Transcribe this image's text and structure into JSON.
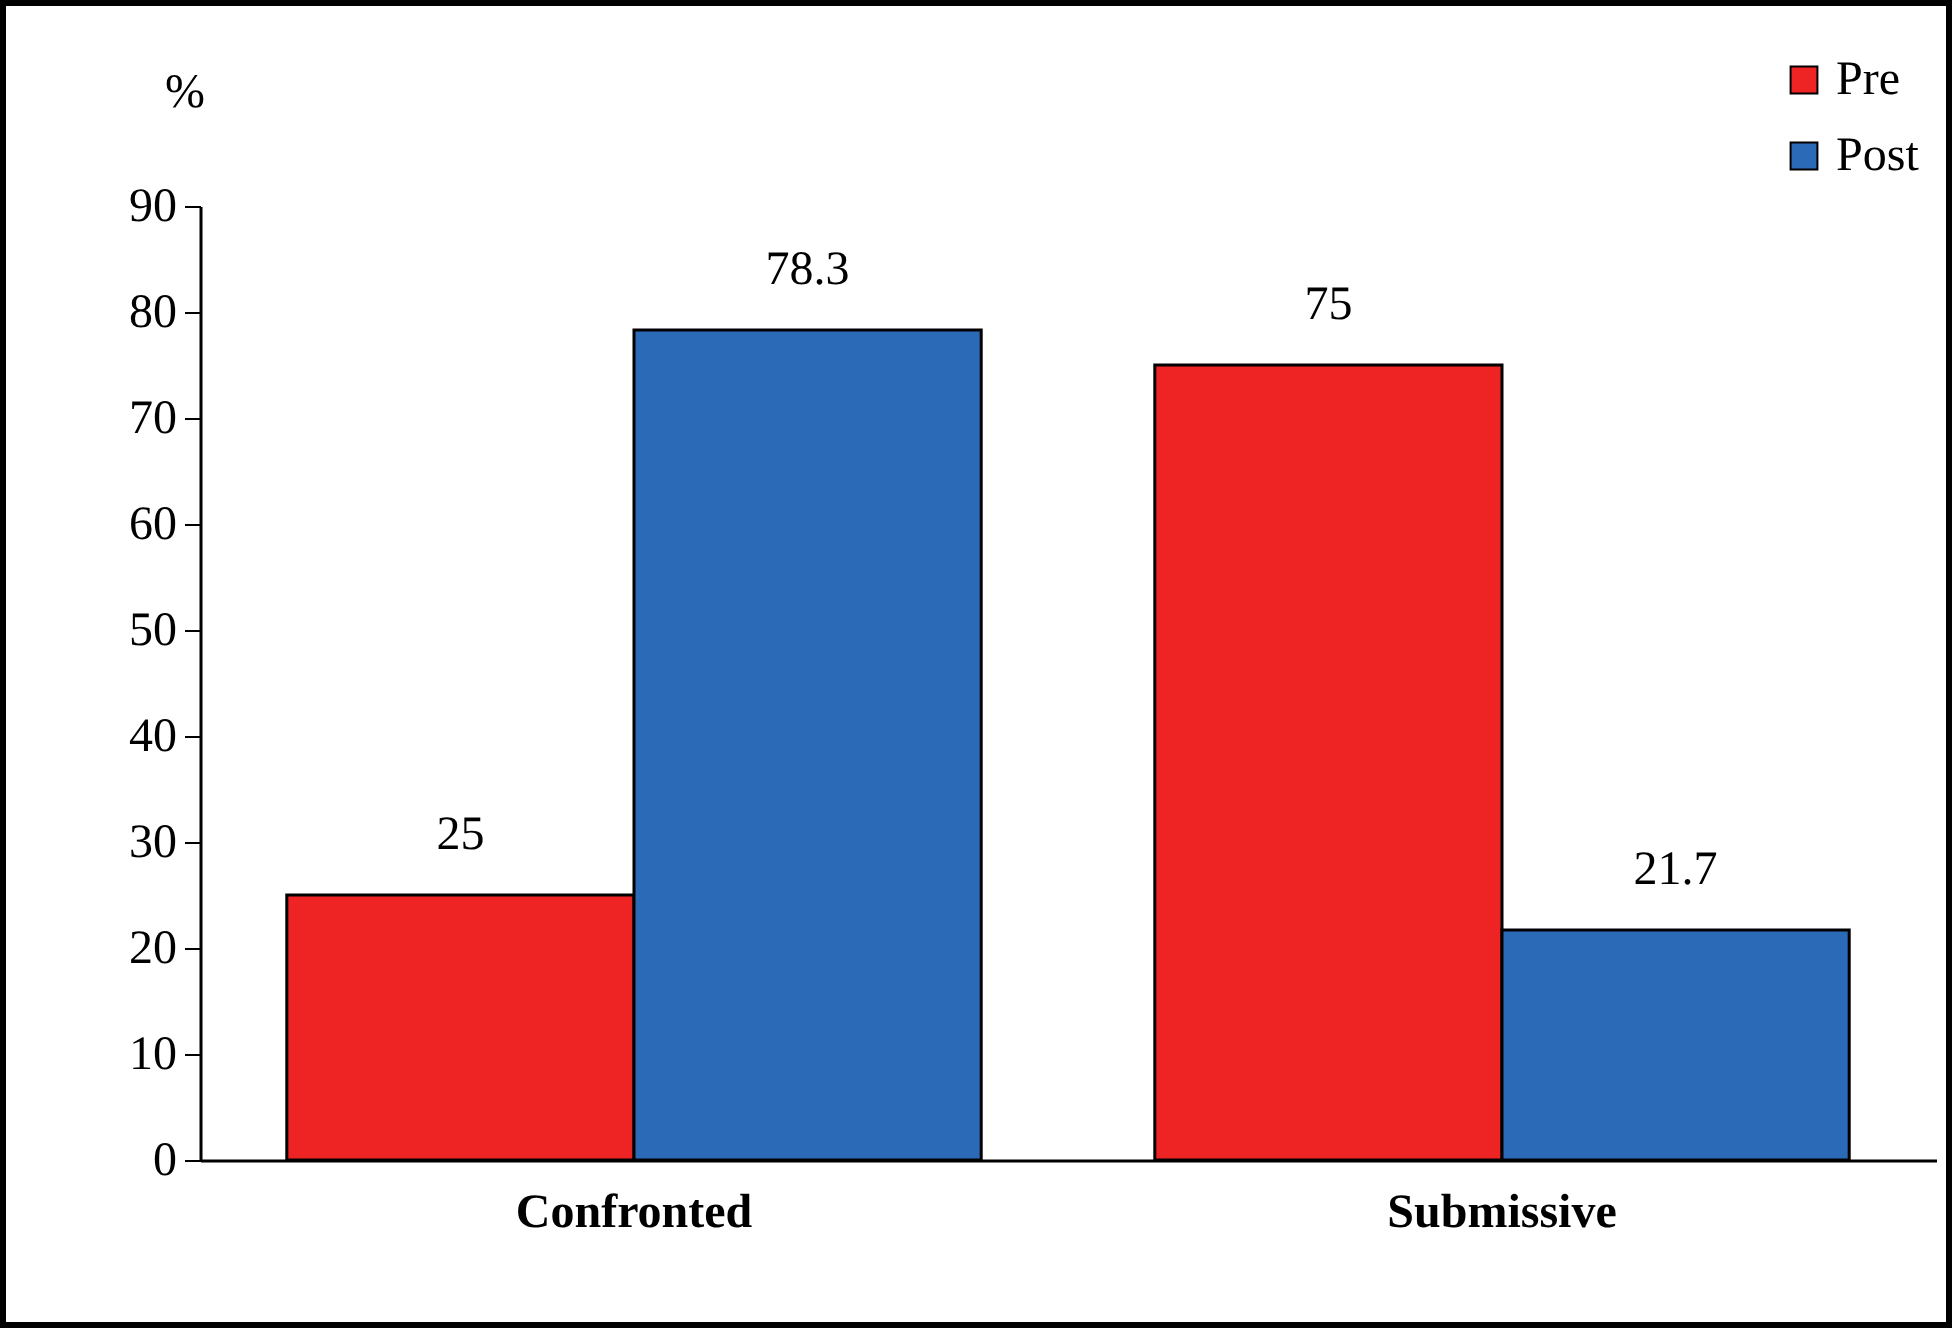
{
  "chart_data": {
    "type": "bar",
    "ylabel": "%",
    "categories": [
      "Confronted",
      "Submissive"
    ],
    "series": [
      {
        "name": "Pre",
        "color": "#ee2424",
        "values": [
          25,
          75
        ]
      },
      {
        "name": "Post",
        "color": "#2a6ab6",
        "values": [
          78.3,
          21.7
        ]
      }
    ],
    "ylim": [
      0,
      90
    ],
    "yticks": [
      0,
      10,
      20,
      30,
      40,
      50,
      60,
      70,
      80,
      90
    ],
    "data_labels": true,
    "grid": false,
    "legend": "top right"
  }
}
